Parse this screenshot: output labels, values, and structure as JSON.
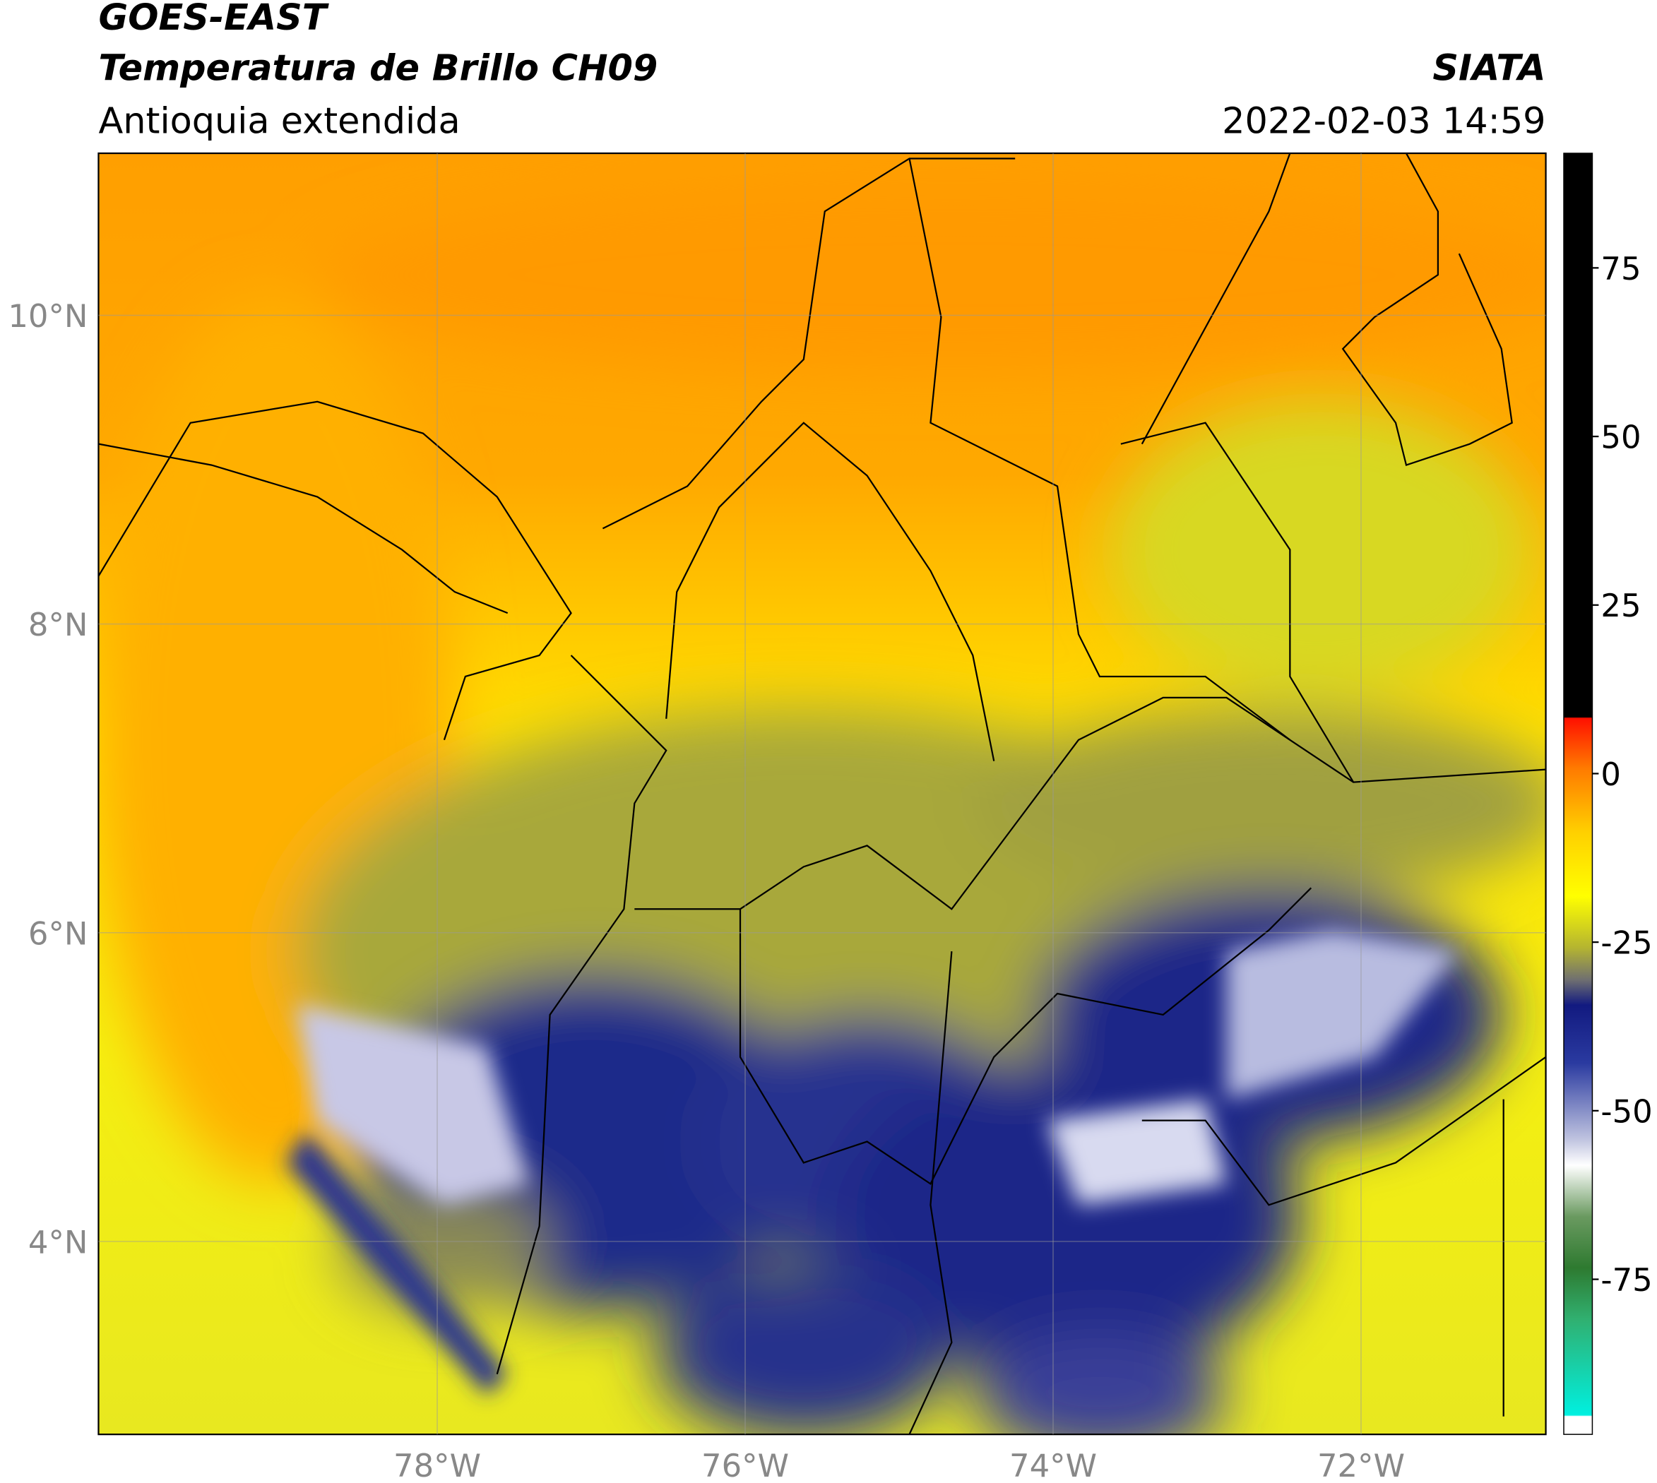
{
  "header": {
    "title": "GOES-EAST",
    "subtitle": "Temperatura de Brillo CH09",
    "region": "Antioquia extendida",
    "source": "SIATA",
    "datetime": "2022-02-03 14:59"
  },
  "map": {
    "lon_range": [
      -80.2,
      -70.8
    ],
    "lat_range": [
      2.75,
      11.05
    ],
    "grid": true,
    "lat_ticks": [
      {
        "value": 10,
        "label": "10°N"
      },
      {
        "value": 8,
        "label": "8°N"
      },
      {
        "value": 6,
        "label": "6°N"
      },
      {
        "value": 4,
        "label": "4°N"
      }
    ],
    "lon_ticks": [
      {
        "value": -78,
        "label": "78°W"
      },
      {
        "value": -76,
        "label": "76°W"
      },
      {
        "value": -74,
        "label": "74°W"
      },
      {
        "value": -72,
        "label": "72°W"
      }
    ]
  },
  "colorbar": {
    "range": [
      -98,
      92
    ],
    "ticks": [
      75,
      50,
      25,
      0,
      -25,
      -50,
      -75
    ]
  }
}
